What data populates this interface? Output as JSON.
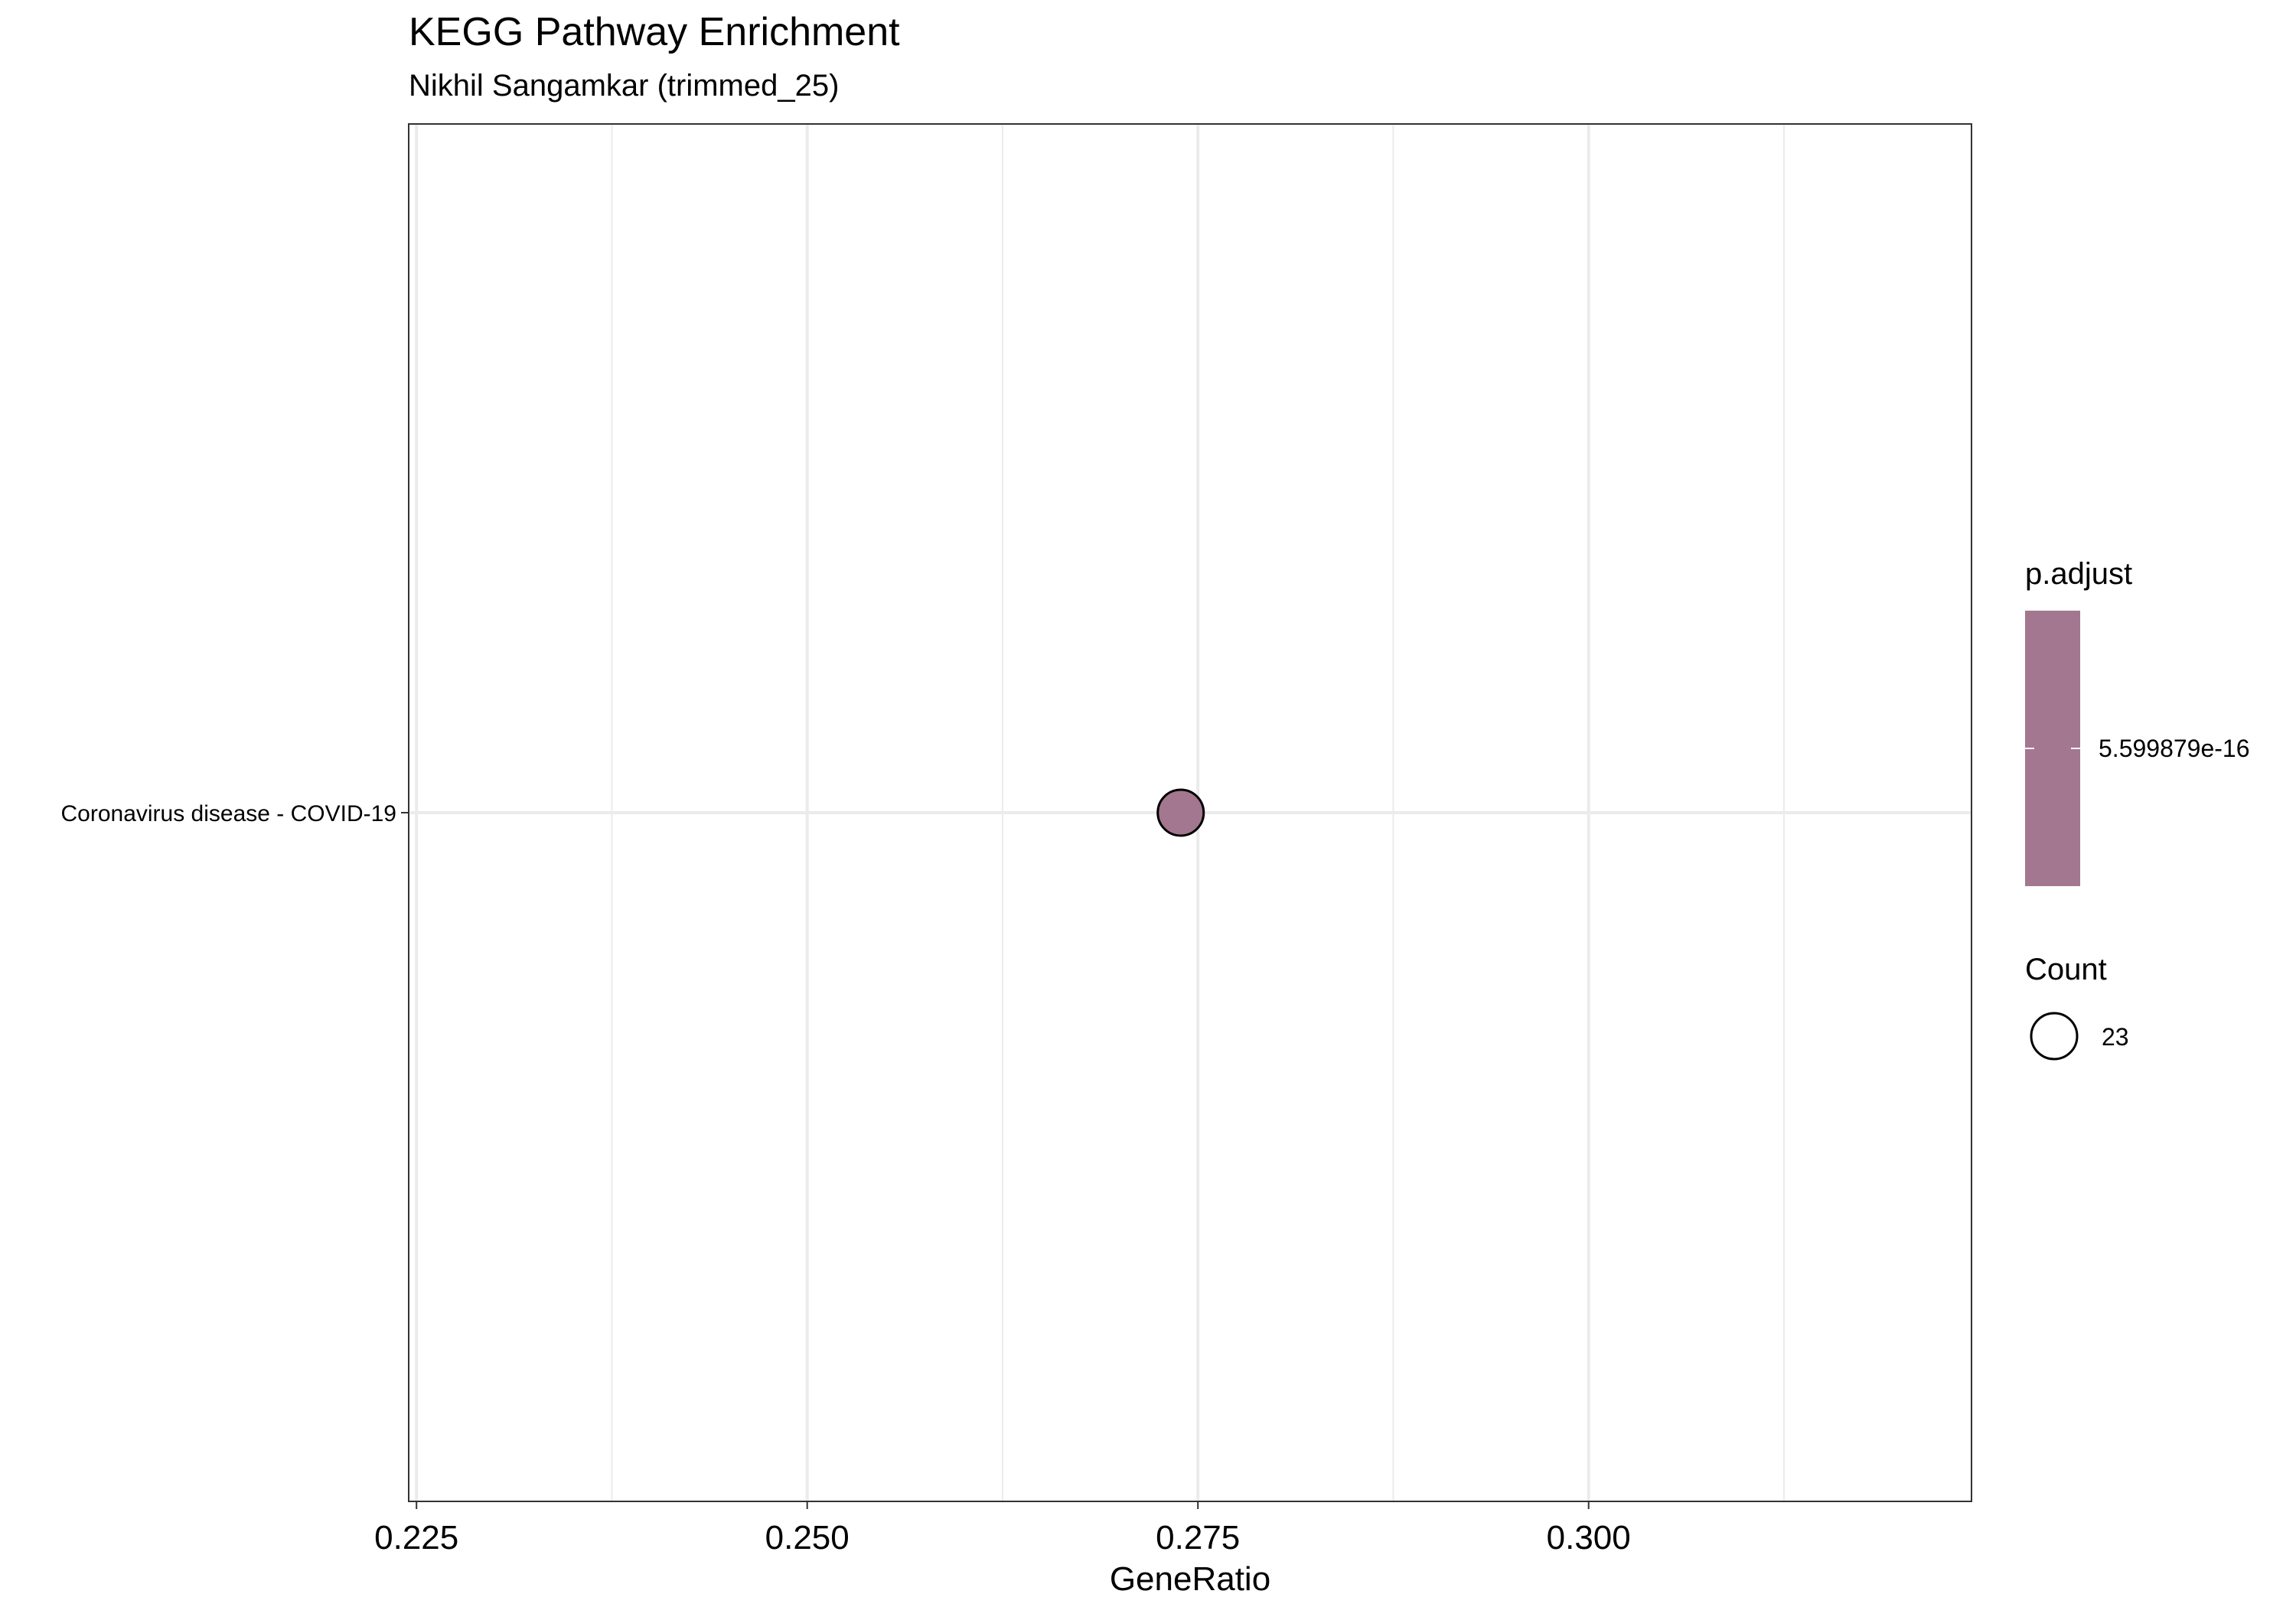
{
  "chart_data": {
    "type": "scatter",
    "title": "KEGG Pathway Enrichment",
    "subtitle": "Nikhil Sangamkar (trimmed_25)",
    "xlabel": "GeneRatio",
    "ylabel": "",
    "xlim": [
      0.2245,
      0.3245
    ],
    "x_ticks": [
      0.225,
      0.25,
      0.275,
      0.3
    ],
    "x_tick_labels": [
      "0.225",
      "0.250",
      "0.275",
      "0.300"
    ],
    "x_minor_ticks": [
      0.2375,
      0.2625,
      0.2875,
      0.3125
    ],
    "categories": [
      "Coronavirus disease - COVID-19"
    ],
    "points": [
      {
        "category": "Coronavirus disease - COVID-19",
        "x": 0.2739,
        "p_adjust": "5.599879e-16",
        "count": 23
      }
    ],
    "grid": true,
    "legend_placement": "right",
    "legend": {
      "color": {
        "title": "p.adjust",
        "labels": [
          "5.599879e-16"
        ]
      },
      "size": {
        "title": "Count",
        "labels": [
          "23"
        ]
      }
    },
    "colors": {
      "point_fill": "#a3778f",
      "gridline": "#ebebeb",
      "panel_border": "#333333"
    }
  }
}
